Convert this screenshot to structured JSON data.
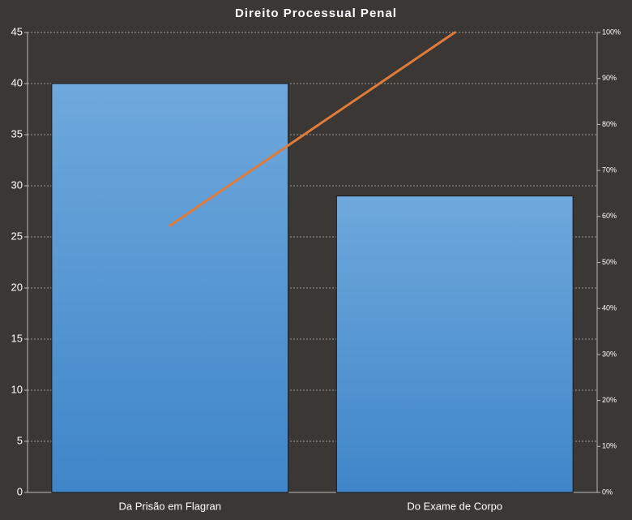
{
  "chart_data": {
    "type": "pareto",
    "title": "Direito Processual Penal",
    "categories": [
      "Da Prisão em Flagran",
      "Do Exame de Corpo"
    ],
    "series": [
      {
        "type": "bar",
        "color": "#5b9bd5",
        "values": [
          40,
          29
        ]
      },
      {
        "type": "line",
        "axis": "y2",
        "color": "#e07b39",
        "values": [
          58,
          100
        ]
      }
    ],
    "ylim": [
      0,
      45
    ],
    "yticks": [
      0,
      5,
      10,
      15,
      20,
      25,
      30,
      35,
      40,
      45
    ],
    "y2lim": [
      0,
      100
    ],
    "y2ticks": [
      {
        "value": 0,
        "label": "0%"
      },
      {
        "value": 10,
        "label": "10%"
      },
      {
        "value": 20,
        "label": "20%"
      },
      {
        "value": 30,
        "label": "30%"
      },
      {
        "value": 40,
        "label": "40%"
      },
      {
        "value": 50,
        "label": "50%"
      },
      {
        "value": 60,
        "label": "60%"
      },
      {
        "value": 70,
        "label": "70%"
      },
      {
        "value": 80,
        "label": "80%"
      },
      {
        "value": 90,
        "label": "90%"
      },
      {
        "value": 100,
        "label": "100%"
      }
    ],
    "grid": true
  }
}
